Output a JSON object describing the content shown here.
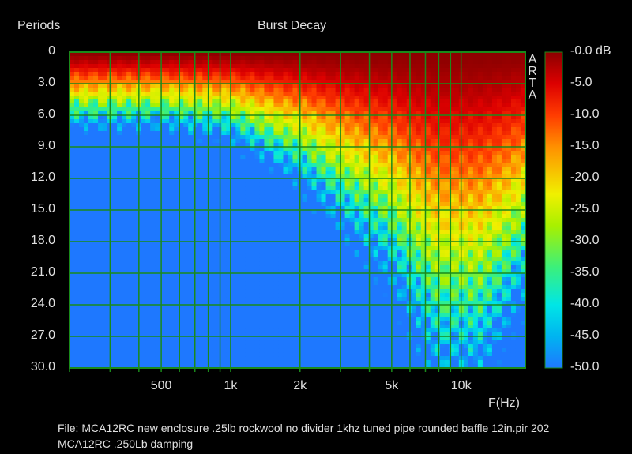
{
  "chart_data": {
    "type": "heatmap",
    "title": "Burst Decay",
    "ylabel": "Periods",
    "xlabel": "F(Hz)",
    "x_scale": "log",
    "xlim": [
      200,
      19000
    ],
    "ylim": [
      0,
      30
    ],
    "x_tick_labels": [
      {
        "value": 500,
        "label": "500"
      },
      {
        "value": 1000,
        "label": "1k"
      },
      {
        "value": 2000,
        "label": "2k"
      },
      {
        "value": 5000,
        "label": "5k"
      },
      {
        "value": 10000,
        "label": "10k"
      }
    ],
    "y_ticks": [
      "0",
      "3.0",
      "6.0",
      "9.0",
      "12.0",
      "15.0",
      "18.0",
      "21.0",
      "24.0",
      "27.0",
      "30.0"
    ],
    "colorbar": {
      "unit": "dB",
      "range": [
        -50,
        0
      ],
      "tick_labels": [
        "-0.0 dB",
        "-5.0",
        "-10.0",
        "-15.0",
        "-20.0",
        "-25.0",
        "-30.0",
        "-35.0",
        "-40.0",
        "-45.0",
        "-50.0"
      ]
    },
    "decay_front_approx": [
      {
        "freq": 200,
        "periods_to_floor": 7
      },
      {
        "freq": 500,
        "periods_to_floor": 7
      },
      {
        "freq": 1000,
        "periods_to_floor": 8
      },
      {
        "freq": 2000,
        "periods_to_floor": 12
      },
      {
        "freq": 5000,
        "periods_to_floor": 21
      },
      {
        "freq": 8000,
        "periods_to_floor": 30
      },
      {
        "freq": 12000,
        "periods_to_floor": 30
      },
      {
        "freq": 19000,
        "periods_to_floor": 22
      }
    ],
    "grid": true,
    "side_label": [
      "A",
      "R",
      "T",
      "A"
    ]
  },
  "footer": {
    "line1": "File: MCA12RC new enclosure .25lb rockwool no divider 1khz tuned pipe rounded baffle 12in.pir  202",
    "line2": "MCA12RC  .250Lb damping"
  }
}
